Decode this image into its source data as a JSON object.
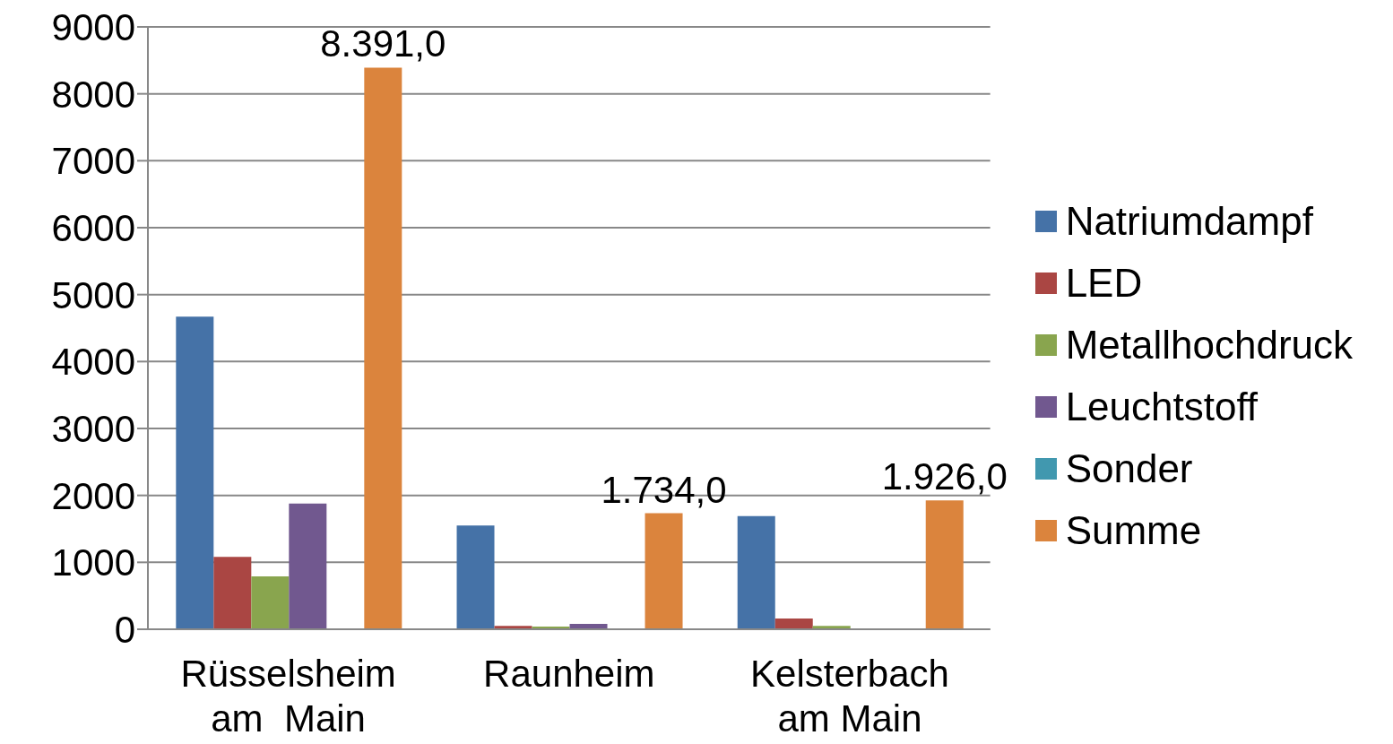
{
  "chart_data": {
    "type": "bar",
    "categories": [
      "Rüsselsheim am  Main",
      "Raunheim",
      "Kelsterbach am Main"
    ],
    "series": [
      {
        "name": "Natriumdampf",
        "color": "#4572a7",
        "values": [
          4670,
          1550,
          1690
        ]
      },
      {
        "name": "LED",
        "color": "#aa4643",
        "values": [
          1080,
          50,
          160
        ]
      },
      {
        "name": "Metallhochdruck",
        "color": "#89a54e",
        "values": [
          790,
          40,
          50
        ]
      },
      {
        "name": "Leuchtstoff",
        "color": "#71588f",
        "values": [
          1880,
          80,
          0
        ]
      },
      {
        "name": "Sonder",
        "color": "#4198af",
        "values": [
          0,
          0,
          0
        ]
      },
      {
        "name": "Summe",
        "color": "#db843d",
        "values": [
          8391,
          1734,
          1926
        ],
        "value_labels": [
          "8.391,0",
          "1.734,0",
          "1.926,0"
        ]
      }
    ],
    "ylim": [
      0,
      9000
    ],
    "yticks": [
      0,
      1000,
      2000,
      3000,
      4000,
      5000,
      6000,
      7000,
      8000,
      9000
    ],
    "grid": "y",
    "legend": "right"
  }
}
